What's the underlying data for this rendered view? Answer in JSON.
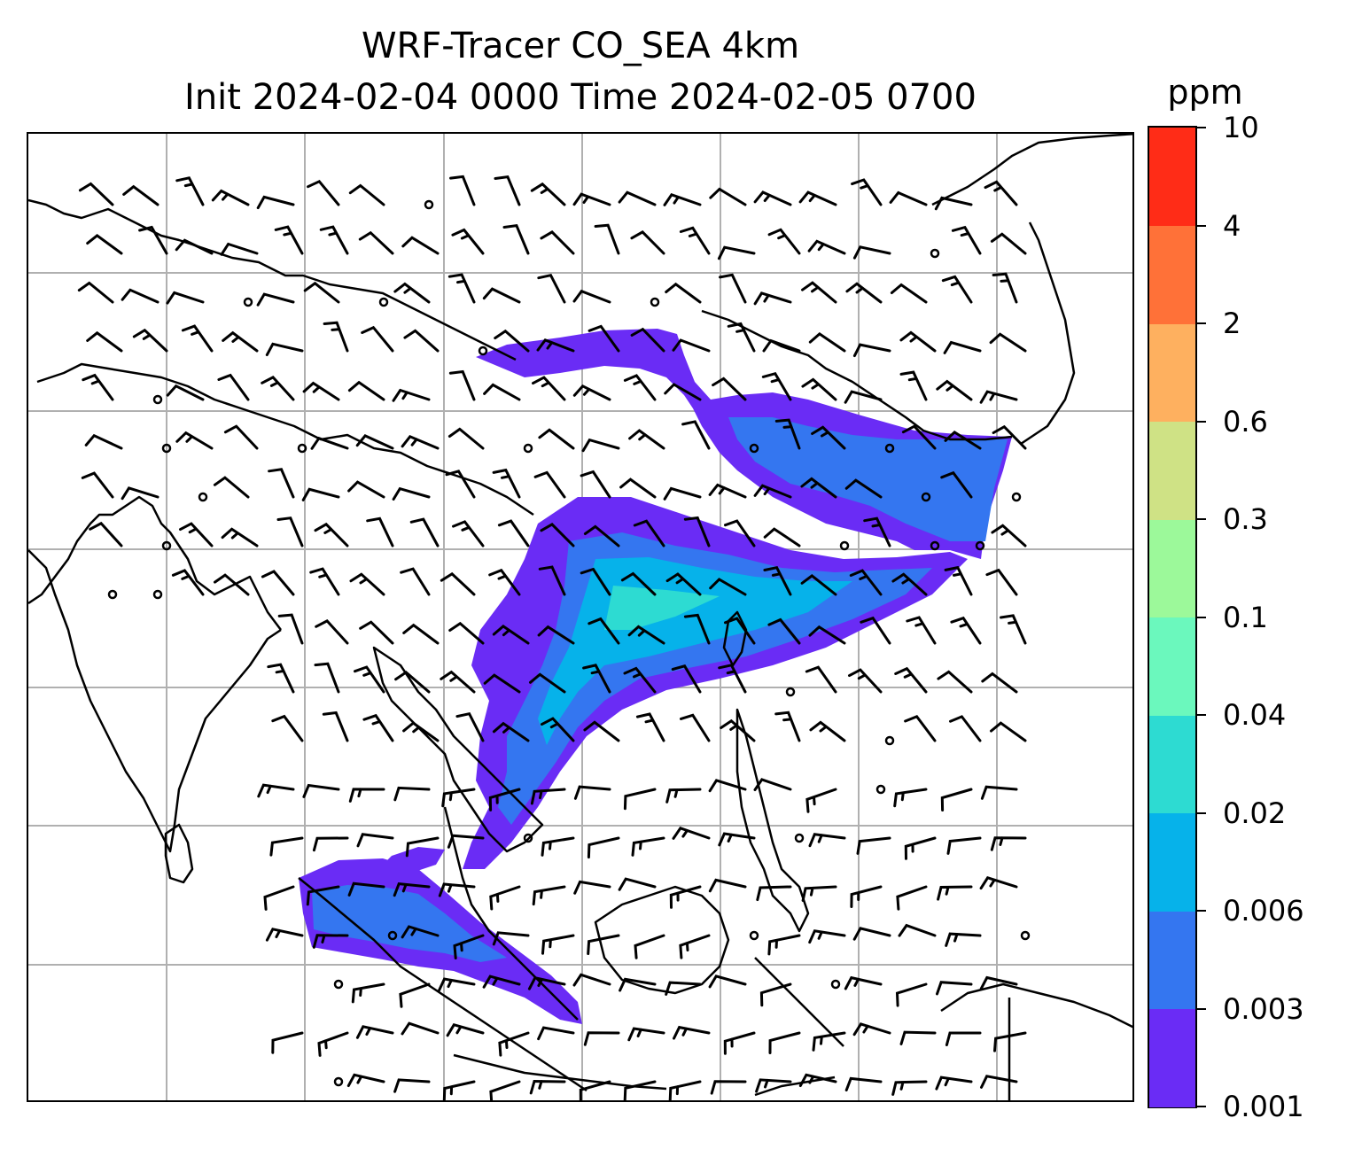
{
  "title": {
    "line1": "WRF-Tracer CO_SEA 4km",
    "line2": "Init 2024-02-04 0000 Time 2024-02-05 0700"
  },
  "colorbar": {
    "unit": "ppm",
    "levels": [
      "0.001",
      "0.003",
      "0.006",
      "0.02",
      "0.04",
      "0.1",
      "0.3",
      "0.6",
      "2",
      "4",
      "10"
    ],
    "colors": [
      "#6a2cf5",
      "#3476f0",
      "#06b2ea",
      "#2ddbd2",
      "#6bf8bd",
      "#9cf99a",
      "#cfe285",
      "#feb05f",
      "#ff7138",
      "#ff2c17"
    ]
  },
  "map": {
    "gridlines": true,
    "plume_colors": [
      "#6a2cf5",
      "#3476f0",
      "#06b2ea",
      "#2ddbd2"
    ],
    "wind_barb_color": "#000000",
    "coastline_color": "#000000",
    "grid_color": "#b0b0b0"
  }
}
